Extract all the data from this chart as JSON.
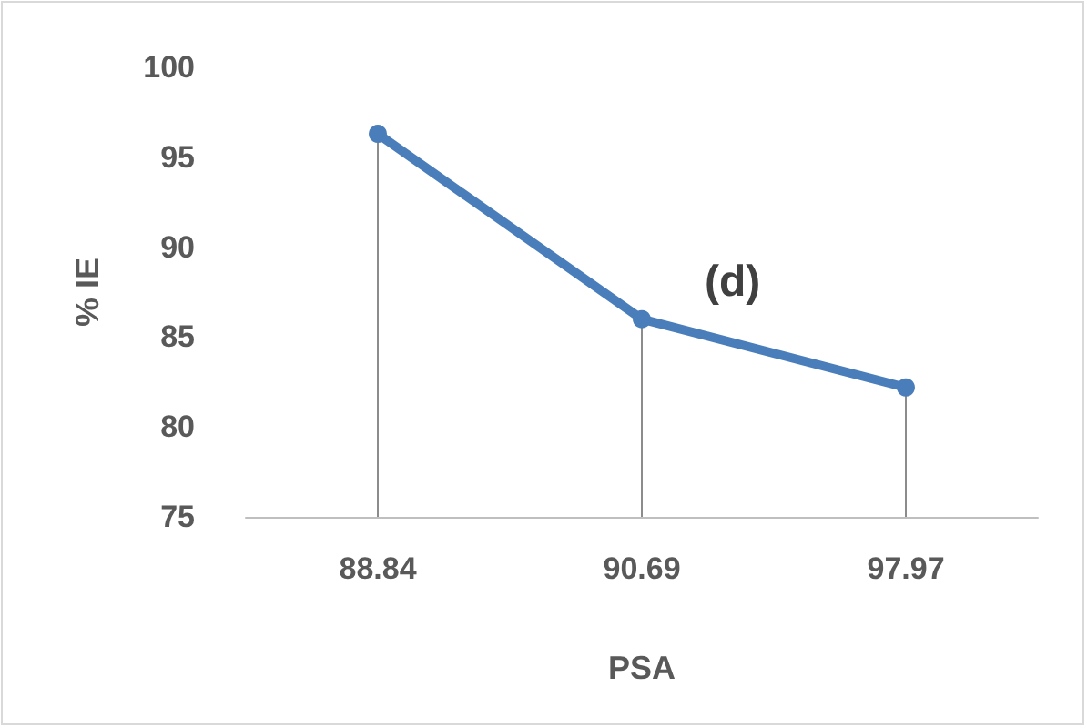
{
  "chart_data": {
    "type": "line",
    "xlabel": "PSA",
    "ylabel": "% IE",
    "annotations": [
      "(d)"
    ],
    "categories": [
      "88.84",
      "90.69",
      "97.97"
    ],
    "series": [
      {
        "type": "lollipop",
        "values": [
          96.3,
          86.0,
          82.2
        ]
      },
      {
        "color": "#4a7ebb",
        "values": [
          96.3,
          86.0,
          82.2
        ]
      }
    ],
    "ylim": [
      75,
      100
    ],
    "yticks": [
      75,
      80,
      85,
      90,
      95,
      100
    ],
    "grid": false,
    "line_style": "solid"
  }
}
